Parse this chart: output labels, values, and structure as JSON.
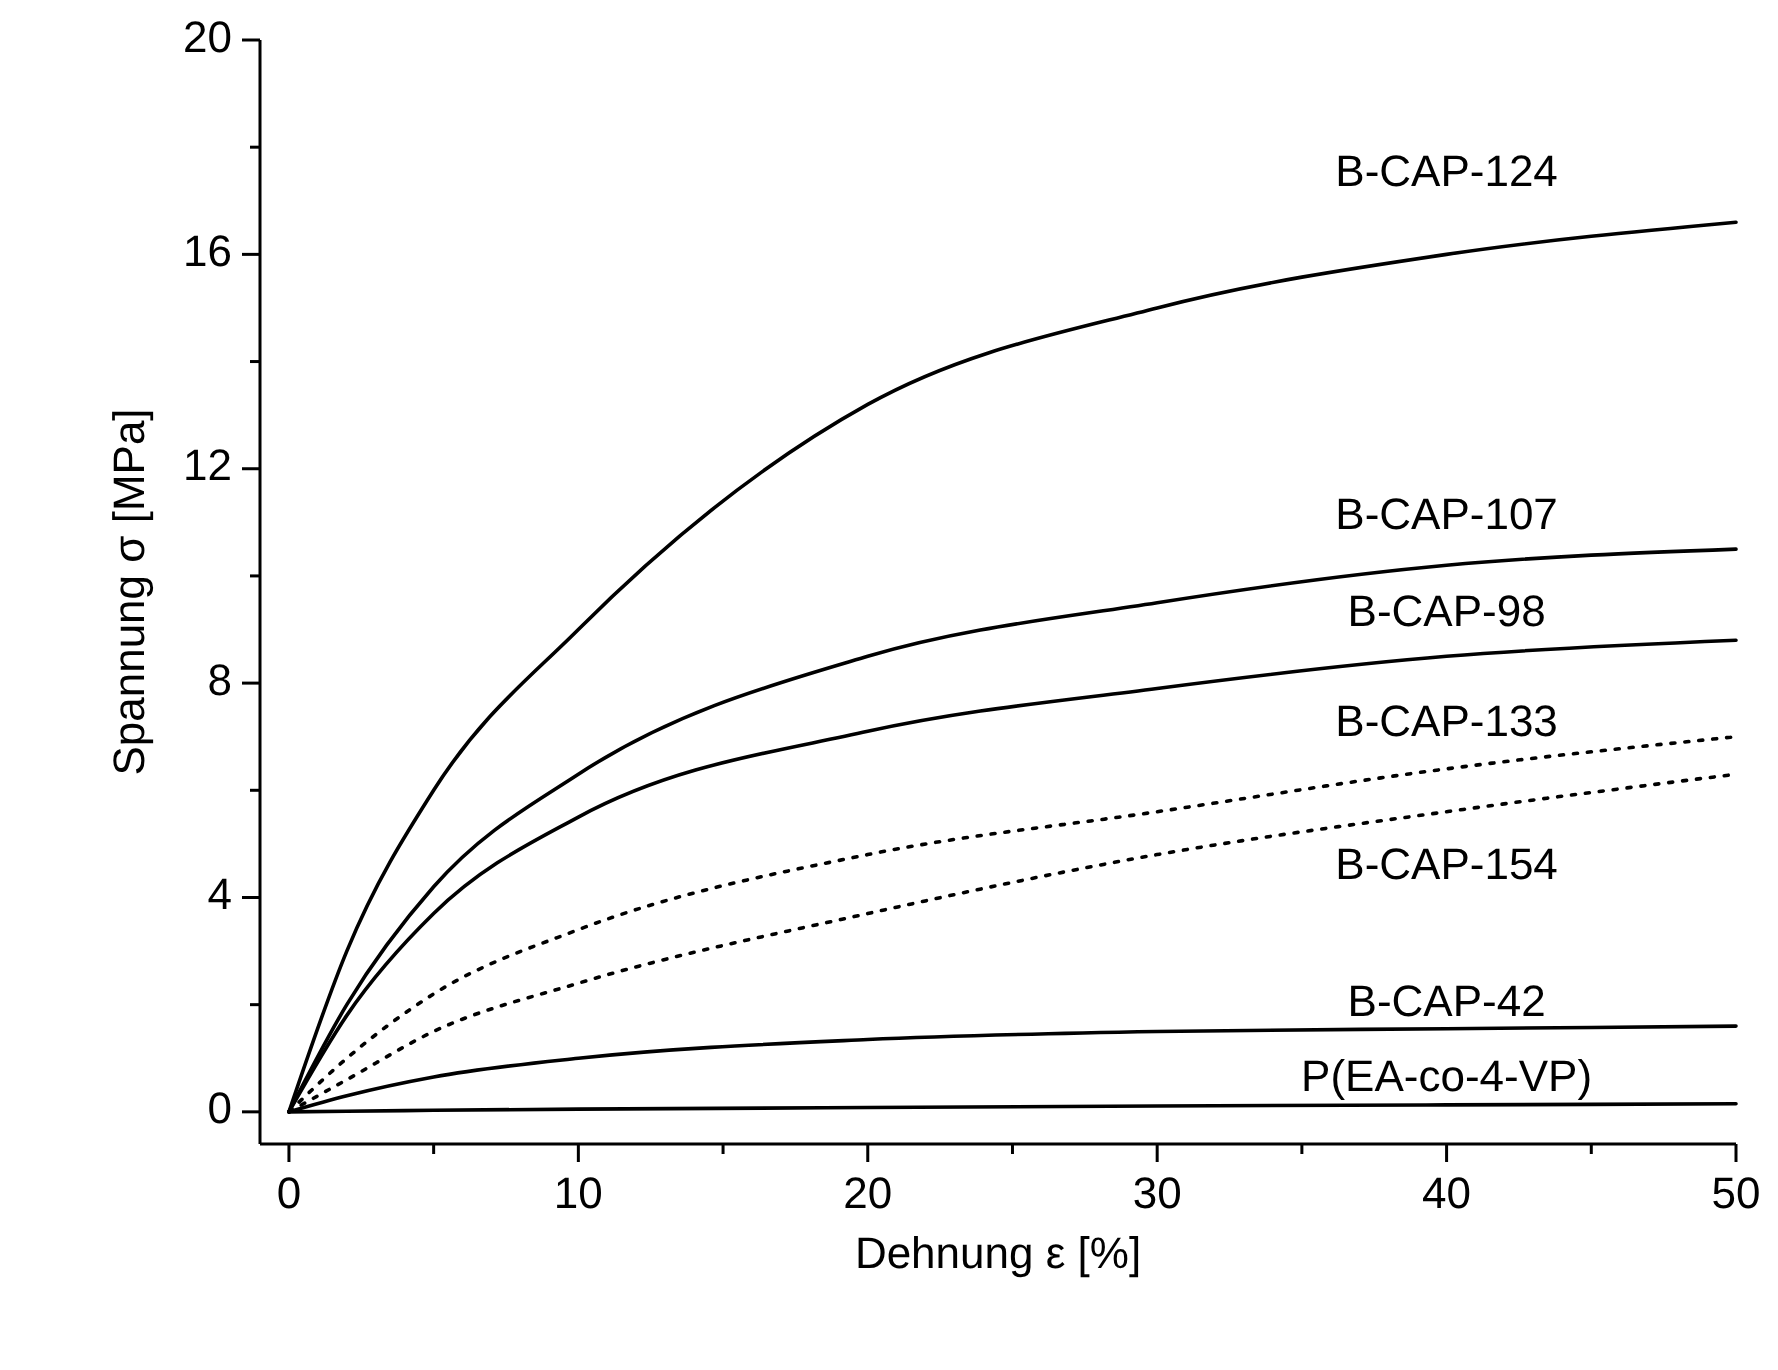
{
  "chart_data": {
    "type": "line",
    "xlabel": "Dehnung ε [%]",
    "ylabel": "Spannung σ [MPa]",
    "x": [
      0,
      2,
      5,
      10,
      20,
      30,
      40,
      50
    ],
    "series": [
      {
        "name": "B-CAP-124",
        "color": "#000000",
        "line_style": "solid",
        "values": [
          0,
          3,
          6,
          9,
          13.2,
          15,
          16,
          16.6
        ]
      },
      {
        "name": "B-CAP-107",
        "color": "#000000",
        "line_style": "solid",
        "values": [
          0,
          2,
          4.2,
          6.3,
          8.5,
          9.5,
          10.2,
          10.5
        ]
      },
      {
        "name": "B-CAP-98",
        "color": "#000000",
        "line_style": "solid",
        "values": [
          0,
          1.8,
          3.7,
          5.5,
          7.1,
          7.9,
          8.5,
          8.8
        ]
      },
      {
        "name": "B-CAP-133",
        "color": "#000000",
        "line_style": "dotted",
        "values": [
          0,
          1,
          2.2,
          3.4,
          4.8,
          5.6,
          6.4,
          7
        ]
      },
      {
        "name": "B-CAP-154",
        "color": "#000000",
        "line_style": "dotted",
        "values": [
          0,
          0.6,
          1.5,
          2.4,
          3.7,
          4.8,
          5.6,
          6.3
        ]
      },
      {
        "name": "B-CAP-42",
        "color": "#000000",
        "line_style": "solid",
        "values": [
          0,
          0.3,
          0.65,
          1,
          1.35,
          1.5,
          1.55,
          1.6
        ]
      },
      {
        "name": "P(EA-co-4-VP)",
        "color": "#000000",
        "line_style": "solid",
        "values": [
          0,
          0.01,
          0.03,
          0.05,
          0.08,
          0.11,
          0.13,
          0.15
        ]
      }
    ],
    "xlim": [
      -1,
      50
    ],
    "ylim": [
      -0.6,
      20
    ],
    "xticks": [
      0,
      {
        "value": 5,
        "label": null
      },
      10,
      {
        "value": 15,
        "label": null
      },
      20,
      {
        "value": 25,
        "label": null
      },
      30,
      {
        "value": 35,
        "label": null
      },
      40,
      {
        "value": 45,
        "label": null
      },
      50
    ],
    "yticks": [
      0,
      {
        "value": 2,
        "label": null
      },
      4,
      {
        "value": 6,
        "label": null
      },
      8,
      {
        "value": 10,
        "label": null
      },
      12,
      {
        "value": 14,
        "label": null
      },
      16,
      {
        "value": 18,
        "label": null
      },
      20
    ],
    "grid": false,
    "legend": false,
    "marker": "none"
  }
}
